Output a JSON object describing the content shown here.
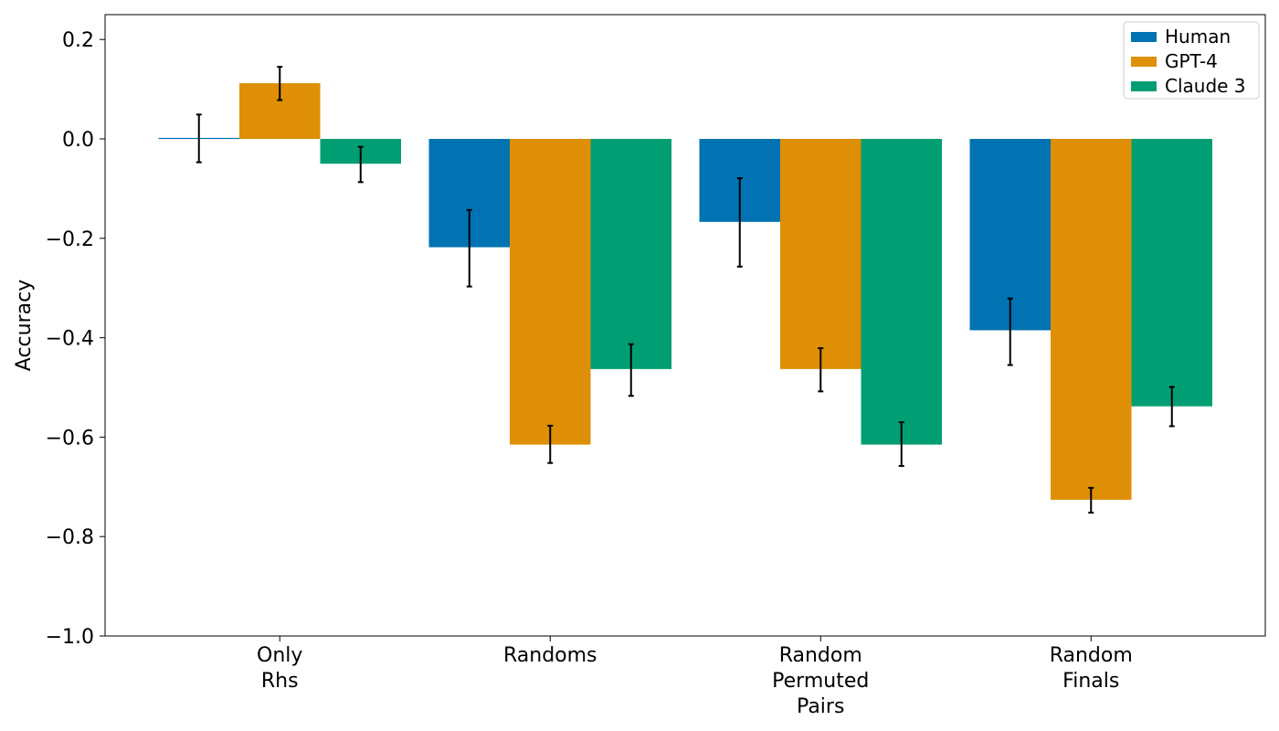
{
  "chart_data": {
    "type": "bar",
    "title": "",
    "xlabel": "",
    "ylabel": "Accuracy",
    "ylim": [
      -1.0,
      0.25
    ],
    "yticks": [
      0.2,
      0.0,
      -0.2,
      -0.4,
      -0.6,
      -0.8,
      -1.0
    ],
    "ytick_labels": [
      "0.2",
      "0.0",
      "−0.2",
      "−0.4",
      "−0.6",
      "−0.8",
      "−1.0"
    ],
    "grid": false,
    "legend_position": "top-right",
    "categories": [
      [
        "Only",
        "Rhs"
      ],
      [
        "Randoms"
      ],
      [
        "Random",
        "Permuted",
        "Pairs"
      ],
      [
        "Random",
        "Finals"
      ]
    ],
    "series": [
      {
        "name": "Human",
        "color": "#0173b2",
        "values": [
          0.002,
          -0.218,
          -0.167,
          -0.385
        ],
        "err_low": [
          -0.047,
          -0.297,
          -0.257,
          -0.455
        ],
        "err_high": [
          0.049,
          -0.143,
          -0.079,
          -0.321
        ]
      },
      {
        "name": "GPT-4",
        "color": "#de8f05",
        "values": [
          0.112,
          -0.615,
          -0.463,
          -0.726
        ],
        "err_low": [
          0.078,
          -0.652,
          -0.508,
          -0.752
        ],
        "err_high": [
          0.145,
          -0.577,
          -0.421,
          -0.702
        ]
      },
      {
        "name": "Claude 3",
        "color": "#029e73",
        "values": [
          -0.05,
          -0.463,
          -0.615,
          -0.538
        ],
        "err_low": [
          -0.087,
          -0.517,
          -0.658,
          -0.578
        ],
        "err_high": [
          -0.016,
          -0.413,
          -0.57,
          -0.499
        ]
      }
    ]
  }
}
